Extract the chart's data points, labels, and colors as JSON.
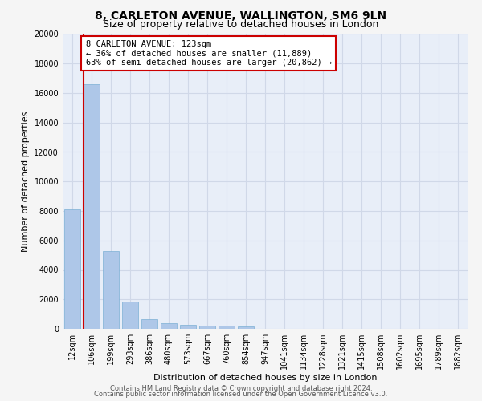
{
  "title": "8, CARLETON AVENUE, WALLINGTON, SM6 9LN",
  "subtitle": "Size of property relative to detached houses in London",
  "xlabel": "Distribution of detached houses by size in London",
  "ylabel": "Number of detached properties",
  "categories": [
    "12sqm",
    "106sqm",
    "199sqm",
    "293sqm",
    "386sqm",
    "480sqm",
    "573sqm",
    "667sqm",
    "760sqm",
    "854sqm",
    "947sqm",
    "1041sqm",
    "1134sqm",
    "1228sqm",
    "1321sqm",
    "1415sqm",
    "1508sqm",
    "1602sqm",
    "1695sqm",
    "1789sqm",
    "1882sqm"
  ],
  "values": [
    8100,
    16600,
    5300,
    1850,
    650,
    380,
    280,
    220,
    220,
    150,
    0,
    0,
    0,
    0,
    0,
    0,
    0,
    0,
    0,
    0,
    0
  ],
  "bar_color": "#aec7e8",
  "bar_edgecolor": "#7bafd4",
  "property_line_color": "#cc0000",
  "annotation_text": "8 CARLETON AVENUE: 123sqm\n← 36% of detached houses are smaller (11,889)\n63% of semi-detached houses are larger (20,862) →",
  "annotation_box_edgecolor": "#cc0000",
  "annotation_box_facecolor": "#ffffff",
  "ylim": [
    0,
    20000
  ],
  "yticks": [
    0,
    2000,
    4000,
    6000,
    8000,
    10000,
    12000,
    14000,
    16000,
    18000,
    20000
  ],
  "footer_line1": "Contains HM Land Registry data © Crown copyright and database right 2024.",
  "footer_line2": "Contains public sector information licensed under the Open Government Licence v3.0.",
  "plot_bg_color": "#e8eef8",
  "fig_bg_color": "#f5f5f5",
  "grid_color": "#d0d8e8",
  "title_fontsize": 10,
  "subtitle_fontsize": 9,
  "ylabel_fontsize": 8,
  "xlabel_fontsize": 8,
  "tick_fontsize": 7,
  "annotation_fontsize": 7.5,
  "footer_fontsize": 6
}
